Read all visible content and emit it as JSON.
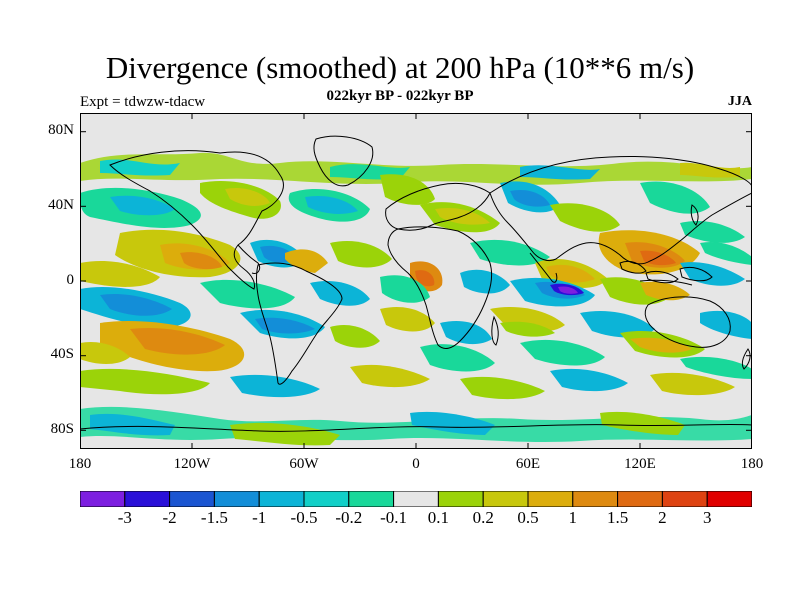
{
  "title": "Divergence (smoothed) at 200 hPa (10**6 m/s)",
  "subtitle": "022kyr BP - 022kyr BP",
  "experiment": "Expt = tdwzw-tdacw",
  "season": "JJA",
  "lat_labels": [
    "80N",
    "40N",
    "0",
    "40S",
    "80S"
  ],
  "lon_labels": [
    "180",
    "120W",
    "60W",
    "0",
    "60E",
    "120E",
    "180"
  ],
  "colorbar": {
    "colors": [
      "#7d1fe0",
      "#2a10d8",
      "#1b55d1",
      "#138ed8",
      "#0cb4d7",
      "#11d0c8",
      "#19d89a",
      "#e6e6e6",
      "#9bd309",
      "#c8c80c",
      "#dcad0c",
      "#de8a10",
      "#df6a12",
      "#de4312",
      "#e00000"
    ],
    "labels": [
      "-3",
      "-2",
      "-1.5",
      "-1",
      "-0.5",
      "-0.2",
      "-0.1",
      "0.1",
      "0.2",
      "0.5",
      "1",
      "1.5",
      "2",
      "3"
    ]
  }
}
